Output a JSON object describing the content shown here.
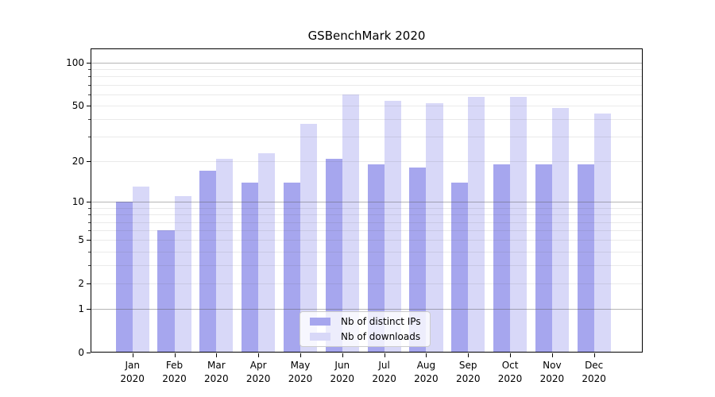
{
  "chart_data": {
    "type": "bar",
    "title": "GSBenchMark 2020",
    "categories": [
      "Jan\n2020",
      "Feb\n2020",
      "Mar\n2020",
      "Apr\n2020",
      "May\n2020",
      "Jun\n2020",
      "Jul\n2020",
      "Aug\n2020",
      "Sep\n2020",
      "Oct\n2020",
      "Nov\n2020",
      "Dec\n2020"
    ],
    "series": [
      {
        "name": "Nb of distinct IPs",
        "color": "#a6a6ee",
        "values": [
          10,
          6,
          17,
          14,
          14,
          21,
          19,
          18,
          14,
          19,
          19,
          19
        ]
      },
      {
        "name": "Nb of downloads",
        "color": "#d8d8f8",
        "values": [
          13,
          11,
          21,
          23,
          37,
          60,
          54,
          52,
          58,
          58,
          48,
          44
        ]
      }
    ],
    "xlabel": "",
    "ylabel": "",
    "y_axis": {
      "scale": "log1p",
      "tick_labels": [
        "0",
        "1",
        "2",
        "5",
        "10",
        "20",
        "50",
        "100"
      ],
      "ticks": [
        0,
        1,
        2,
        5,
        10,
        20,
        50,
        100
      ],
      "minor_ticks": [
        3,
        4,
        6,
        7,
        8,
        9,
        30,
        40,
        60,
        70,
        80,
        90
      ],
      "decade_gridlines": [
        1,
        10,
        100
      ],
      "ylim": [
        0,
        126
      ]
    },
    "grid": true,
    "legend": {
      "location": "lower center",
      "entries": [
        "Nb of distinct IPs",
        "Nb of downloads"
      ]
    }
  }
}
